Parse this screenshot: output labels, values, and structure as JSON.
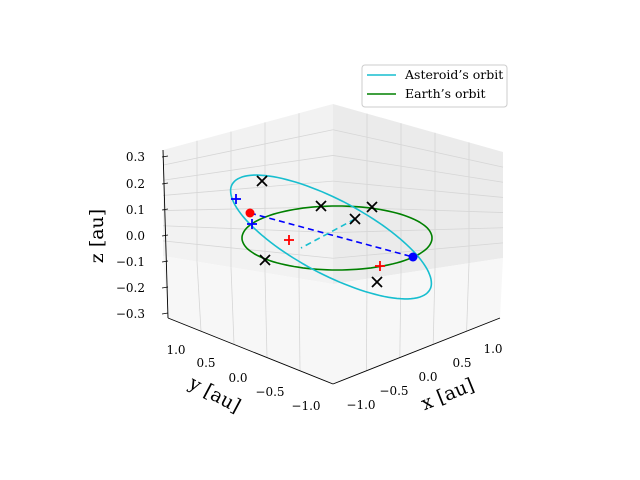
{
  "chart_data": {
    "type": "3d-line",
    "title": "",
    "xlabel": "x [au]",
    "ylabel": "y [au]",
    "zlabel": "z [au]",
    "xticks": [
      "−1.0",
      "−0.5",
      "0.0",
      "0.5",
      "1.0"
    ],
    "yticks": [
      "−1.0",
      "−0.5",
      "0.0",
      "0.5",
      "1.0"
    ],
    "zticks": [
      "−0.3",
      "−0.2",
      "−0.1",
      "0.0",
      "0.1",
      "0.2",
      "0.3"
    ],
    "xlim": [
      -1.2,
      1.2
    ],
    "ylim": [
      -1.2,
      1.2
    ],
    "zlim": [
      -0.3,
      0.3
    ],
    "grid": true,
    "legend": {
      "position": "upper-right",
      "entries": [
        {
          "label": "Asteroid’s orbit",
          "color": "#17becf"
        },
        {
          "label": "Earth’s orbit",
          "color": "#008000"
        }
      ]
    },
    "series": [
      {
        "name": "Asteroid’s orbit",
        "kind": "ellipse",
        "color": "#17becf",
        "semi_major": 1.1,
        "semi_minor": 0.72,
        "tilt_deg": 14
      },
      {
        "name": "Earth’s orbit",
        "kind": "ellipse",
        "color": "#008000",
        "semi_major": 1.0,
        "semi_minor": 1.0,
        "tilt_deg": 0
      }
    ],
    "markers": {
      "x_crosses": [
        [
          0.0,
          0.75,
          0.2
        ],
        [
          0.35,
          0.2,
          0.1
        ],
        [
          0.7,
          0.0,
          0.1
        ],
        [
          0.3,
          -0.25,
          0.0
        ],
        [
          -0.5,
          0.4,
          -0.1
        ],
        [
          -0.2,
          -0.95,
          -0.1
        ]
      ],
      "blue_plus": [
        [
          0.25,
          0.9,
          0.12
        ],
        [
          0.15,
          0.7,
          0.03
        ]
      ],
      "red_plus": [
        [
          -0.3,
          0.55,
          0.0
        ],
        [
          -0.35,
          -0.65,
          -0.1
        ]
      ],
      "red_dot": [
        0.1,
        0.85,
        0.08
      ],
      "blue_dot": [
        -0.35,
        -0.55,
        -0.07
      ]
    },
    "lines": [
      {
        "style": "dashed",
        "color": "#0000ff",
        "from": "red_dot",
        "to": "blue_dot"
      },
      {
        "style": "dashed",
        "color": "#17becf",
        "from": [
          0.3,
          -0.25,
          0.0
        ],
        "to": [
          -0.1,
          0.25,
          -0.05
        ]
      }
    ]
  }
}
